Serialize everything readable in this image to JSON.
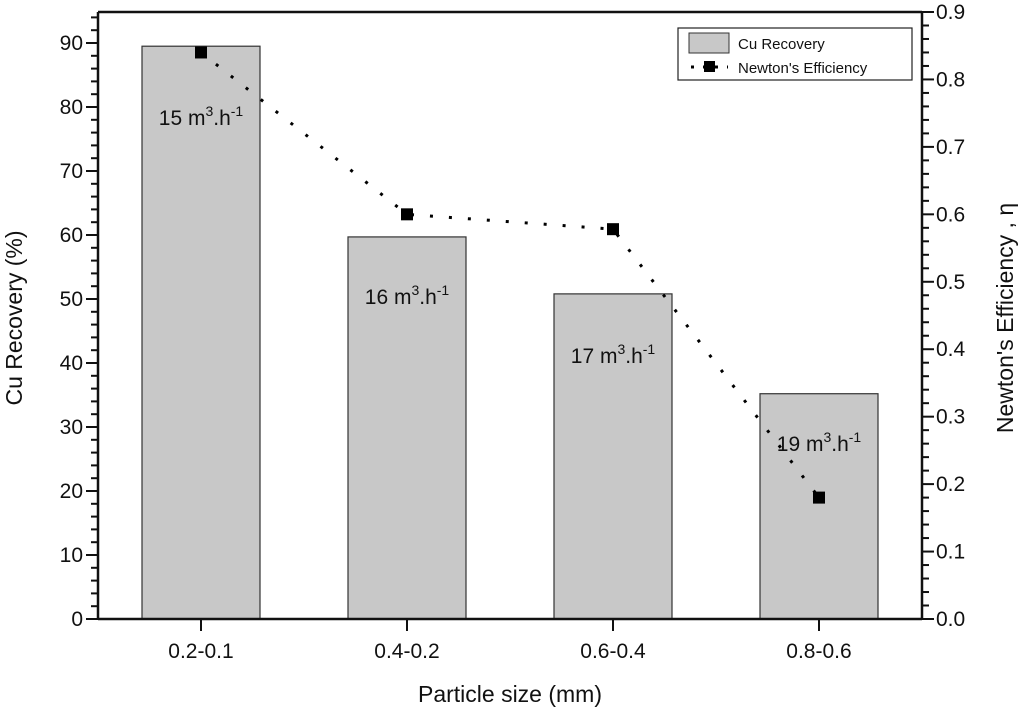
{
  "chart_data": {
    "type": "bar",
    "title": "",
    "xlabel": "Particle size (mm)",
    "ylabel": "Cu Recovery (%)",
    "y2label": "Newton's Efficiency , η",
    "categories": [
      "0.2-0.1",
      "0.4-0.2",
      "0.6-0.4",
      "0.8-0.6"
    ],
    "series": [
      {
        "name": "Cu Recovery",
        "type": "bar",
        "axis": "left",
        "values": [
          89.5,
          59.7,
          50.8,
          35.2
        ],
        "color": "#c8c8c8",
        "bar_labels": [
          {
            "base": "15 m",
            "sup1": "3",
            "mid": ".h",
            "sup2": "-1"
          },
          {
            "base": "16 m",
            "sup1": "3",
            "mid": ".h",
            "sup2": "-1"
          },
          {
            "base": "17 m",
            "sup1": "3",
            "mid": ".h",
            "sup2": "-1"
          },
          {
            "base": "19 m",
            "sup1": "3",
            "mid": ".h",
            "sup2": "-1"
          }
        ]
      },
      {
        "name": "Newton's Efficiency",
        "type": "line",
        "axis": "right",
        "line_style": "dotted",
        "marker": "square",
        "values": [
          0.84,
          0.6,
          0.578,
          0.18
        ],
        "color": "#000000"
      }
    ],
    "ylim": [
      0,
      95
    ],
    "y_ticks": [
      "0",
      "10",
      "20",
      "30",
      "40",
      "50",
      "60",
      "70",
      "80",
      "90"
    ],
    "y2lim": [
      0,
      0.9
    ],
    "y2_ticks": [
      "0.0",
      "0.1",
      "0.2",
      "0.3",
      "0.4",
      "0.5",
      "0.6",
      "0.7",
      "0.8",
      "0.9"
    ],
    "grid": false,
    "legend": {
      "position": "top-right",
      "entries": [
        "Cu Recovery",
        "Newton's Efficiency"
      ]
    }
  }
}
